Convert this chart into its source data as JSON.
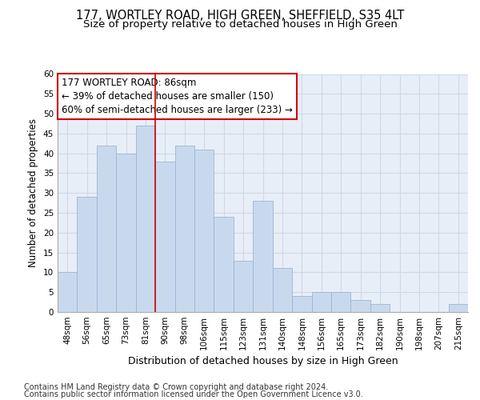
{
  "title": "177, WORTLEY ROAD, HIGH GREEN, SHEFFIELD, S35 4LT",
  "subtitle": "Size of property relative to detached houses in High Green",
  "xlabel": "Distribution of detached houses by size in High Green",
  "ylabel": "Number of detached properties",
  "bar_labels": [
    "48sqm",
    "56sqm",
    "65sqm",
    "73sqm",
    "81sqm",
    "90sqm",
    "98sqm",
    "106sqm",
    "115sqm",
    "123sqm",
    "131sqm",
    "140sqm",
    "148sqm",
    "156sqm",
    "165sqm",
    "173sqm",
    "182sqm",
    "190sqm",
    "198sqm",
    "207sqm",
    "215sqm"
  ],
  "bar_values": [
    10,
    29,
    42,
    40,
    47,
    38,
    42,
    41,
    24,
    13,
    28,
    11,
    4,
    5,
    5,
    3,
    2,
    0,
    0,
    0,
    2
  ],
  "bar_color": "#c9d9ed",
  "bar_edge_color": "#9ab5d5",
  "grid_color": "#d0d8e8",
  "background_color": "#e8eef7",
  "annotation_line1": "177 WORTLEY ROAD: 86sqm",
  "annotation_line2": "← 39% of detached houses are smaller (150)",
  "annotation_line3": "60% of semi-detached houses are larger (233) →",
  "annotation_box_color": "#ffffff",
  "annotation_box_edge": "#cc0000",
  "vline_color": "#cc0000",
  "vline_x_index": 4,
  "ylim": [
    0,
    60
  ],
  "yticks": [
    0,
    5,
    10,
    15,
    20,
    25,
    30,
    35,
    40,
    45,
    50,
    55,
    60
  ],
  "footer_line1": "Contains HM Land Registry data © Crown copyright and database right 2024.",
  "footer_line2": "Contains public sector information licensed under the Open Government Licence v3.0.",
  "title_fontsize": 10.5,
  "subtitle_fontsize": 9.5,
  "xlabel_fontsize": 9,
  "ylabel_fontsize": 8.5,
  "tick_fontsize": 7.5,
  "annotation_fontsize": 8.5,
  "footer_fontsize": 7
}
